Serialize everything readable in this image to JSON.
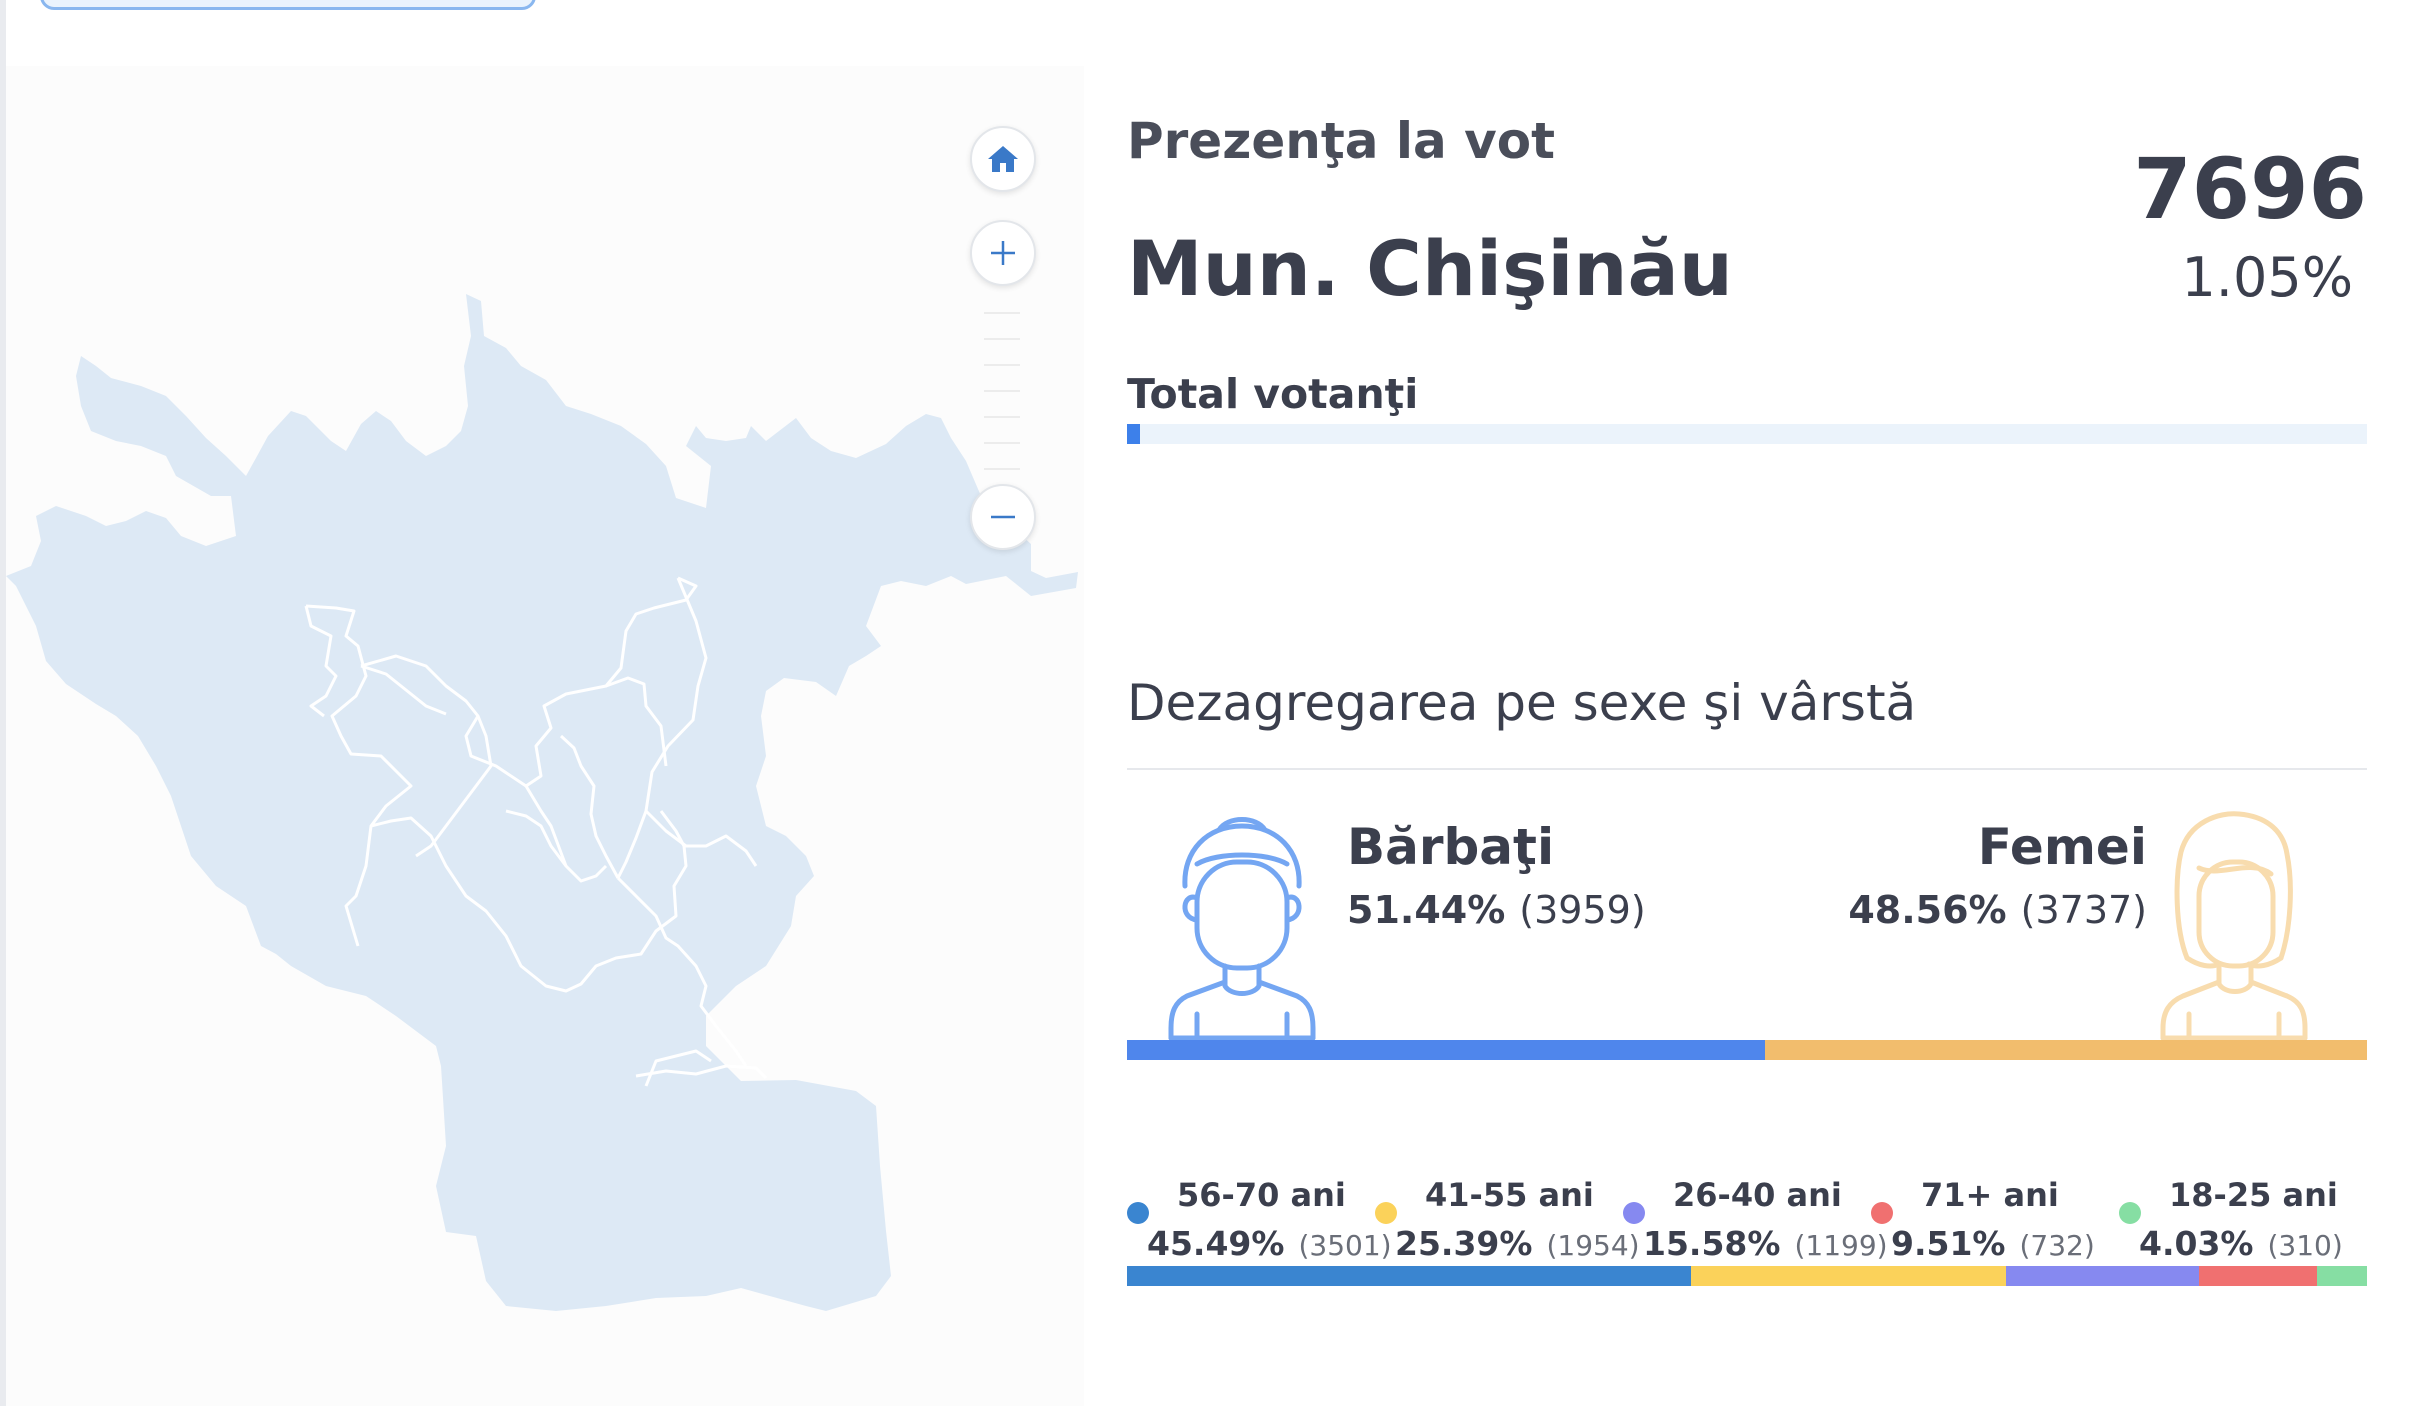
{
  "map": {
    "colors": {
      "land": "#dde9f5",
      "border": "#ffffff"
    },
    "controls": {
      "home_icon": "home-icon",
      "zoom_in_icon": "plus-icon",
      "zoom_out_icon": "minus-icon"
    }
  },
  "turnout": {
    "label": "Prezenţa la vot",
    "region": "Mun. Chişinău",
    "total": "7696",
    "percent": "1.05%",
    "voters_label": "Total votanţi",
    "progress_value": 1.05
  },
  "breakdown": {
    "heading": "Dezagregarea pe sexe şi vârstă",
    "male": {
      "label": "Bărbaţi",
      "percent": "51.44%",
      "count": "(3959)",
      "value": 51.44,
      "color": "#4f86ec",
      "icon": "male-avatar-icon"
    },
    "female": {
      "label": "Femei",
      "percent": "48.56%",
      "count": "(3737)",
      "value": 48.56,
      "color": "#f2bd6d",
      "icon": "female-avatar-icon"
    }
  },
  "age_groups": [
    {
      "label": "56-70 ani",
      "percent": "45.49%",
      "count": "(3501)",
      "value": 45.49,
      "color": "#3a85d0"
    },
    {
      "label": "41-55 ani",
      "percent": "25.39%",
      "count": "(1954)",
      "value": 25.39,
      "color": "#fbd25a"
    },
    {
      "label": "26-40 ani",
      "percent": "15.58%",
      "count": "(1199)",
      "value": 15.58,
      "color": "#8689f0"
    },
    {
      "label": "71+ ani",
      "percent": "9.51%",
      "count": "(732)",
      "value": 9.51,
      "color": "#f07070"
    },
    {
      "label": "18-25 ani",
      "percent": "4.03%",
      "count": "(310)",
      "value": 4.03,
      "color": "#86dea3"
    }
  ]
}
